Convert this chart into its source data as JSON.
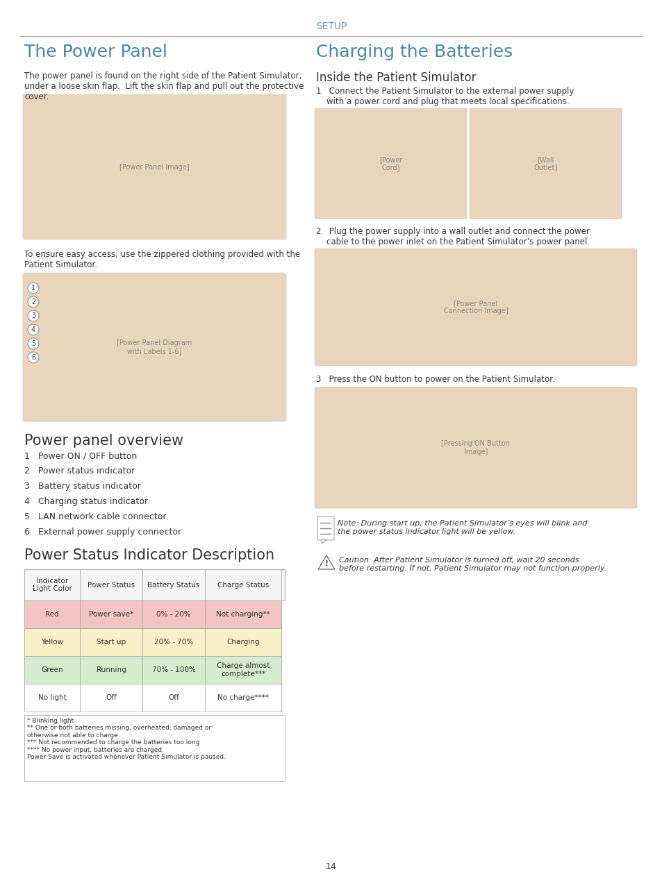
{
  "page_title": "SETUP",
  "left_section_title": "The Power Panel",
  "left_section_text": "The power panel is found on the right side of the Patient Simulator,\nunder a loose skin flap.  Lift the skin flap and pull out the protective\ncover.",
  "left_section_text2": "To ensure easy access, use the zippered clothing provided with the\nPatient Simulator.",
  "power_panel_overview_title": "Power panel overview",
  "power_panel_items": [
    "1   Power ON / OFF button",
    "2   Power status indicator",
    "3   Battery status indicator",
    "4   Charging status indicator",
    "5   LAN network cable connector",
    "6   External power supply connector"
  ],
  "right_section_title": "Charging the Batteries",
  "right_subsection_title": "Inside the Patient Simulator",
  "right_step1": "1   Connect the Patient Simulator to the external power supply\n    with a power cord and plug that meets local specifications.",
  "right_step2": "2   Plug the power supply into a wall outlet and connect the power\n    cable to the power inlet on the Patient Simulator’s power panel.",
  "right_step3": "3   Press the ON button to power on the Patient Simulator.",
  "note_text": "Note: During start up, the Patient Simulator’s eyes will blink and\nthe power status indicator light will be yellow.",
  "caution_text": "Caution: After Patient Simulator is turned off, wait 20 seconds\nbefore restarting. If not, Patient Simulator may not function properly.",
  "table_title": "Power Status Indicator Description",
  "table_headers": [
    "Indicator\nLight Color",
    "Power Status",
    "Battery Status",
    "Charge Status"
  ],
  "table_rows": [
    [
      "Red",
      "Power save*",
      "0% - 20%",
      "Not charging**"
    ],
    [
      "Yellow",
      "Start up",
      "20% - 70%",
      "Charging"
    ],
    [
      "Green",
      "Running",
      "70% - 100%",
      "Charge almost\ncomplete***"
    ],
    [
      "No light",
      "Off",
      "Off",
      "No charge****"
    ]
  ],
  "table_row_colors": [
    "#f2c4c4",
    "#faf0c8",
    "#d4edcc",
    "#ffffff"
  ],
  "table_footnotes": "* Blinking light\n** One or both batteries missing, overheated, damaged or\notherwise not able to charge\n*** Not recommended to charge the batteries too long\n**** No power input, batteries are charged.\nPower Save is activated whenever Patient Simulator is paused.",
  "page_number": "14",
  "title_color": "#4a86a8",
  "header_color": "#5a9abd",
  "divider_color": "#aaaaaa",
  "table_border_color": "#aaaaaa",
  "body_color": "#333333",
  "bg_color": "#ffffff"
}
